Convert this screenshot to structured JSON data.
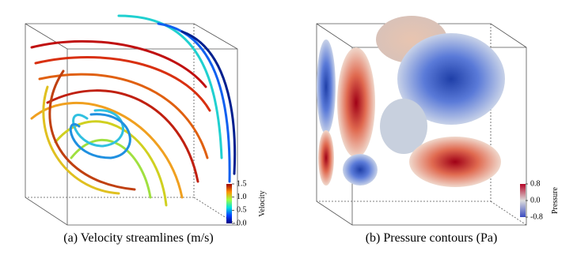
{
  "panels": [
    {
      "caption": "(a) Velocity streamlines (m/s)",
      "colorbar": {
        "title": "Velocity",
        "lim": [
          0,
          1.5
        ],
        "ticks": [
          1.5,
          {
            "value": 1.0,
            "label": "1.0"
          },
          0.5,
          {
            "value": 0.0,
            "label": "0.0"
          }
        ]
      }
    },
    {
      "caption": "(b) Pressure contours (Pa)",
      "colorbar": {
        "title": "Pressure",
        "lim": [
          -0.8,
          0.8
        ],
        "ticks": [
          0.8,
          {
            "value": 0.0,
            "label": "0.0"
          },
          -0.8
        ]
      }
    }
  ]
}
